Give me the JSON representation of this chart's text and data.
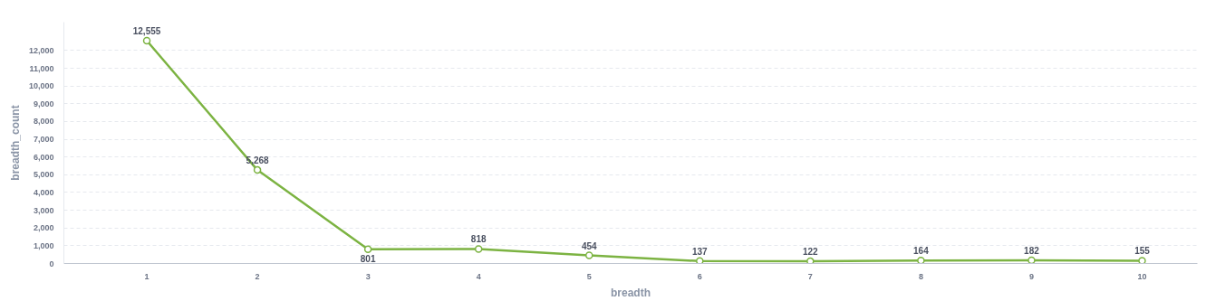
{
  "chart_data": {
    "type": "line",
    "xlabel": "breadth",
    "ylabel": "breadth_count",
    "categories": [
      "1",
      "2",
      "3",
      "4",
      "5",
      "6",
      "7",
      "8",
      "9",
      "10"
    ],
    "series": [
      {
        "color": "#7cb342",
        "values": [
          12555,
          5268,
          801,
          818,
          454,
          137,
          122,
          164,
          182,
          155
        ]
      }
    ],
    "ylim": [
      0,
      13600
    ],
    "yticks": [
      {
        "value": 0,
        "label": "0"
      },
      {
        "value": 1000,
        "label": "1,000"
      },
      {
        "value": 2000,
        "label": "2,000"
      },
      {
        "value": 3000,
        "label": "3,000"
      },
      {
        "value": 4000,
        "label": "4,000"
      },
      {
        "value": 5000,
        "label": "5,000"
      },
      {
        "value": 6000,
        "label": "6,000"
      },
      {
        "value": 7000,
        "label": "7,000"
      },
      {
        "value": 8000,
        "label": "8,000"
      },
      {
        "value": 9000,
        "label": "9,000"
      },
      {
        "value": 10000,
        "label": "10,000"
      },
      {
        "value": 11000,
        "label": "11,000"
      },
      {
        "value": 12000,
        "label": "12,000"
      }
    ],
    "value_labels": [
      "12,555",
      "5,268",
      "801",
      "818",
      "454",
      "137",
      "122",
      "164",
      "182",
      "155"
    ],
    "grid": "y",
    "marker": "circle",
    "line_style": "solid"
  }
}
